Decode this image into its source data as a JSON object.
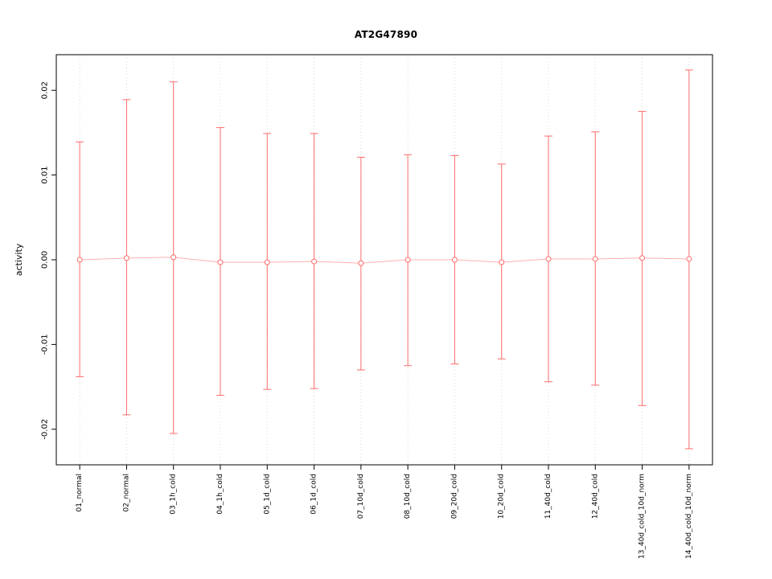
{
  "chart_data": {
    "type": "line",
    "subtype": "points-with-error-bars",
    "title": "AT2G47890",
    "xlabel": "",
    "ylabel": "activity",
    "categories": [
      "01_normal",
      "02_normal",
      "03_1h_cold",
      "04_1h_cold",
      "05_1d_cold",
      "06_1d_cold",
      "07_10d_cold",
      "08_10d_cold",
      "09_20d_cold",
      "10_20d_cold",
      "11_40d_cold",
      "12_40d_cold",
      "13_40d_cold_10d_norm",
      "14_40d_cold_10d_norm"
    ],
    "series": [
      {
        "name": "activity",
        "values": [
          0.0,
          0.0002,
          0.0003,
          -0.0003,
          -0.0003,
          -0.0002,
          -0.0004,
          0.0,
          0.0,
          -0.0003,
          0.0001,
          0.0001,
          0.0002,
          0.0001
        ]
      }
    ],
    "error_upper": [
      0.0139,
      0.0189,
      0.021,
      0.0156,
      0.0149,
      0.0149,
      0.0121,
      0.0124,
      0.0123,
      0.0113,
      0.0146,
      0.0151,
      0.0175,
      0.0224
    ],
    "error_lower": [
      -0.0138,
      -0.0183,
      -0.0205,
      -0.016,
      -0.0153,
      -0.0152,
      -0.013,
      -0.0125,
      -0.0123,
      -0.0117,
      -0.0144,
      -0.0148,
      -0.0172,
      -0.0223
    ],
    "yticks": [
      {
        "value": -0.02,
        "label": "-0.02"
      },
      {
        "value": -0.01,
        "label": "-0.01"
      },
      {
        "value": 0.0,
        "label": "0.00"
      },
      {
        "value": 0.01,
        "label": "0.01"
      },
      {
        "value": 0.02,
        "label": "0.02"
      }
    ],
    "ylim": [
      -0.0242,
      0.0242
    ],
    "grid": "vertical-dotted-per-category",
    "legend": "none",
    "colors": {
      "series": "#ff6b6b",
      "connector": "#ffb0b0",
      "grid": "#d8d8d8",
      "axis": "#000000",
      "background": "#ffffff"
    }
  }
}
